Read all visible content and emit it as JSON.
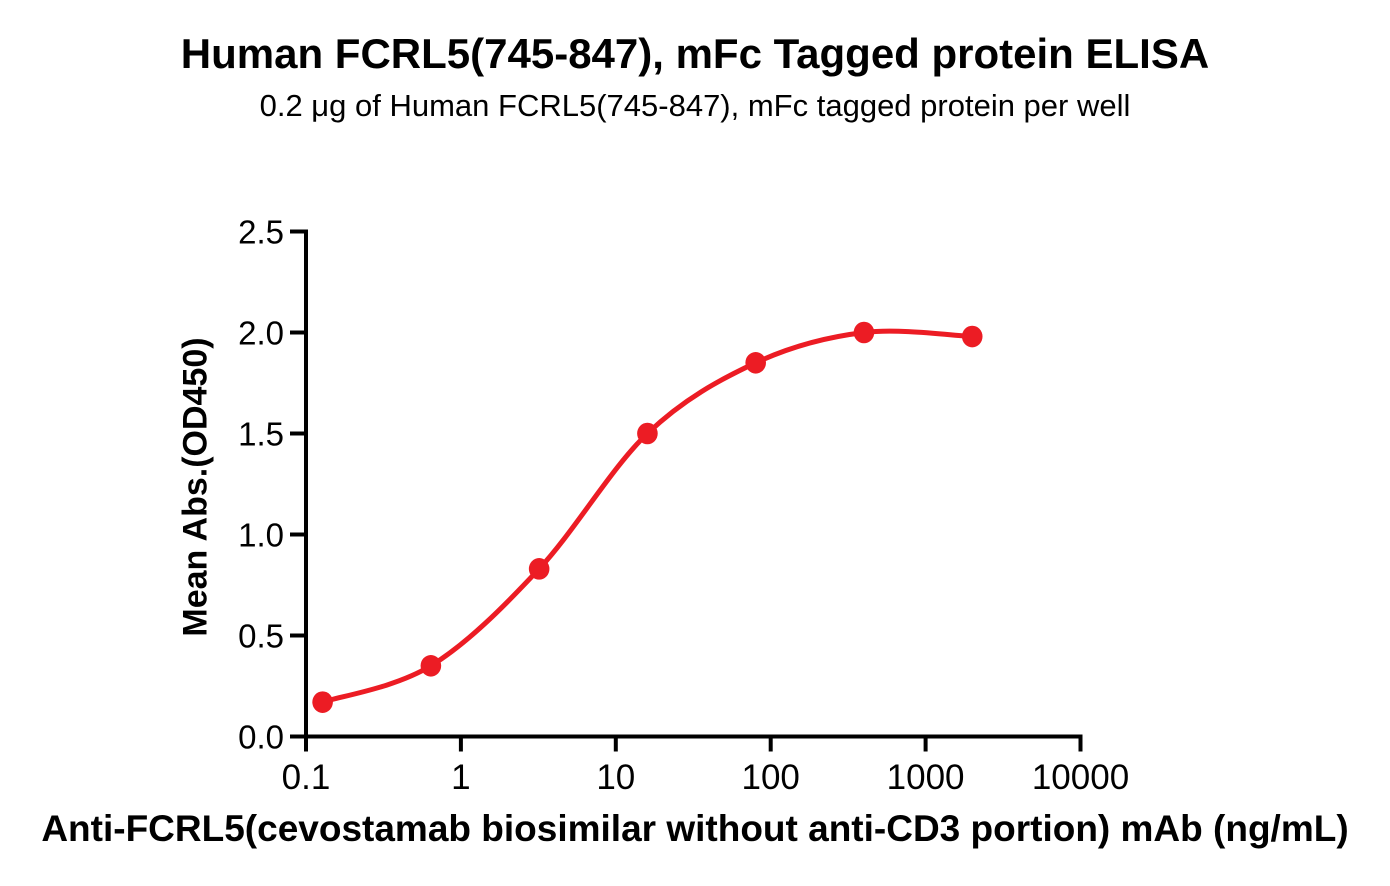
{
  "chart_data": {
    "type": "line",
    "title": "Human FCRL5(745-847), mFc Tagged protein ELISA",
    "subtitle": "0.2 μg of Human FCRL5(745-847), mFc tagged protein per well",
    "xlabel": "Anti-FCRL5(cevostamab biosimilar without anti-CD3 portion) mAb (ng/mL)",
    "ylabel": "Mean Abs.(OD450)",
    "x_scale": "log",
    "xlim": [
      0.1,
      10000
    ],
    "ylim": [
      0,
      2.5
    ],
    "x_ticks": [
      "0.1",
      "1",
      "10",
      "100",
      "1000",
      "10000"
    ],
    "y_ticks": [
      "0.0",
      "0.5",
      "1.0",
      "1.5",
      "2.0",
      "2.5"
    ],
    "grid": false,
    "legend_position": "none",
    "series": [
      {
        "color": "#EC1C24",
        "marker": "filled-circle",
        "line_style": "smooth-fit-curve",
        "points": [
          {
            "x": 0.128,
            "y": 0.17
          },
          {
            "x": 0.64,
            "y": 0.35
          },
          {
            "x": 3.2,
            "y": 0.83
          },
          {
            "x": 16,
            "y": 1.5
          },
          {
            "x": 80,
            "y": 1.85
          },
          {
            "x": 400,
            "y": 2.0
          },
          {
            "x": 2000,
            "y": 1.98
          }
        ]
      }
    ]
  },
  "colors": {
    "background": "#FFFFFF",
    "text": "#000000",
    "axis": "#000000",
    "accent": "#EC1C24"
  }
}
